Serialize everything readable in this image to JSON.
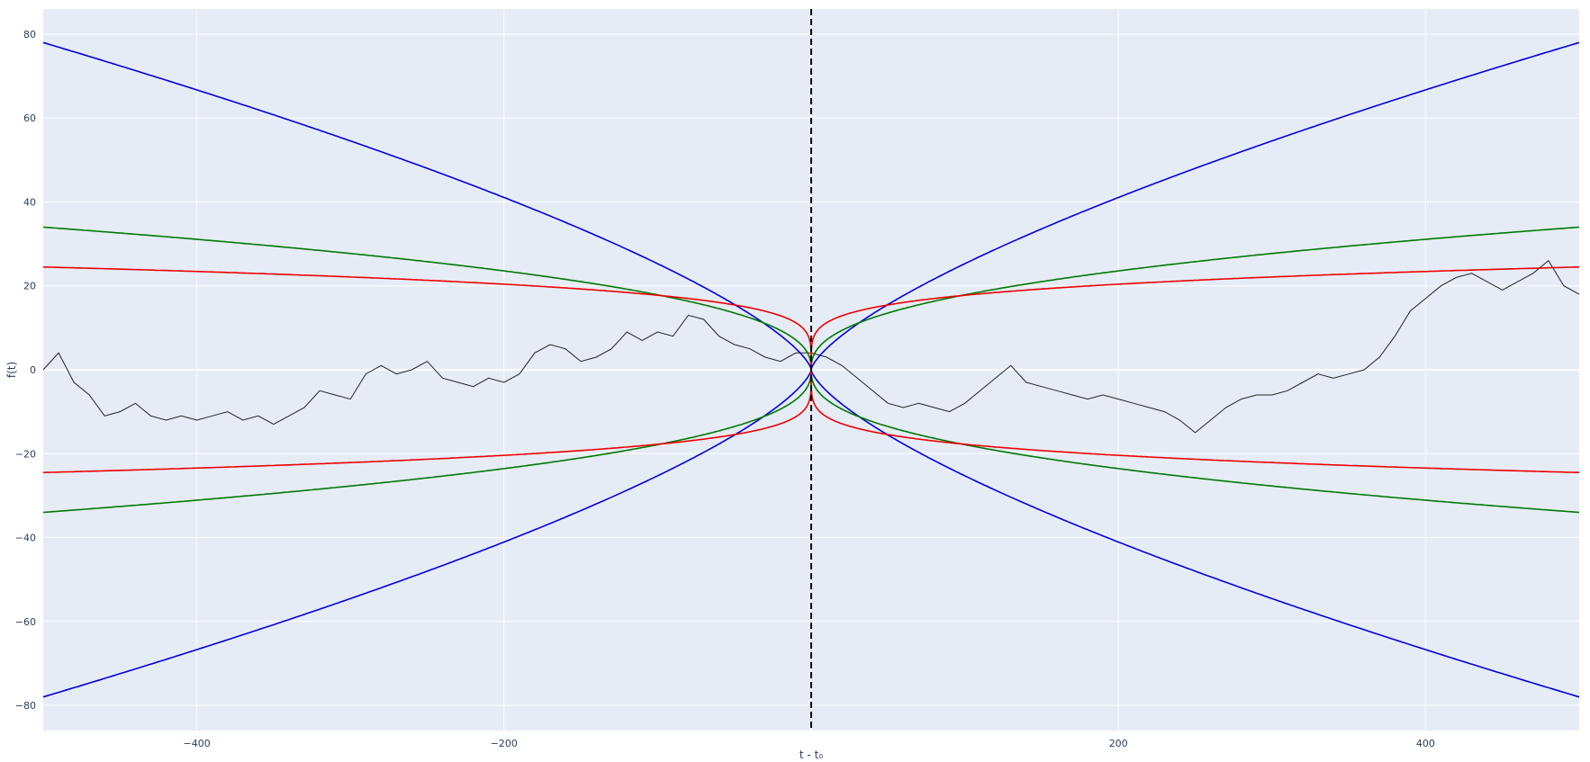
{
  "chart_data": {
    "type": "line",
    "title": "",
    "xlabel": "t - t₀",
    "ylabel": "f(t)",
    "xlim": [
      -500,
      500
    ],
    "ylim": [
      -86,
      86
    ],
    "grid": true,
    "legend": "none",
    "colors": {
      "plot_bg": "#e5ecf6",
      "grid": "#ffffff",
      "text": "#2a3f5f",
      "blue": "#0000dd",
      "green": "#007a00",
      "red": "#ee0000",
      "walk": "#222222",
      "vline": "#000000"
    },
    "x_ticks": [
      {
        "value": -400,
        "label": "−400"
      },
      {
        "value": -200,
        "label": "−200"
      },
      {
        "value": 0,
        "label": ""
      },
      {
        "value": 200,
        "label": "200"
      },
      {
        "value": 400,
        "label": "400"
      }
    ],
    "y_ticks": [
      {
        "value": 80,
        "label": "80"
      },
      {
        "value": 60,
        "label": "60"
      },
      {
        "value": 40,
        "label": "40"
      },
      {
        "value": 20,
        "label": "20"
      },
      {
        "value": 0,
        "label": "0"
      },
      {
        "value": -20,
        "label": "−20"
      },
      {
        "value": -40,
        "label": "−40"
      },
      {
        "value": -60,
        "label": "−60"
      },
      {
        "value": -80,
        "label": "−80"
      }
    ],
    "vertical_line": {
      "x": 0,
      "style": "dashed"
    },
    "envelopes": [
      {
        "color": "blue",
        "exponent": 0.7,
        "value_at_edge": 78
      },
      {
        "color": "green",
        "exponent": 0.4,
        "value_at_edge": 34
      },
      {
        "color": "red",
        "exponent": 0.2,
        "value_at_edge": 24.5
      }
    ],
    "walk": {
      "color": "walk",
      "points": [
        [
          -500,
          0
        ],
        [
          -490,
          4
        ],
        [
          -480,
          -3
        ],
        [
          -470,
          -6
        ],
        [
          -460,
          -11
        ],
        [
          -450,
          -10
        ],
        [
          -440,
          -8
        ],
        [
          -430,
          -11
        ],
        [
          -420,
          -12
        ],
        [
          -410,
          -11
        ],
        [
          -400,
          -12
        ],
        [
          -390,
          -11
        ],
        [
          -380,
          -10
        ],
        [
          -370,
          -12
        ],
        [
          -360,
          -11
        ],
        [
          -350,
          -13
        ],
        [
          -340,
          -11
        ],
        [
          -330,
          -9
        ],
        [
          -320,
          -5
        ],
        [
          -310,
          -6
        ],
        [
          -300,
          -7
        ],
        [
          -290,
          -1
        ],
        [
          -280,
          1
        ],
        [
          -270,
          -1
        ],
        [
          -260,
          0
        ],
        [
          -250,
          2
        ],
        [
          -240,
          -2
        ],
        [
          -230,
          -3
        ],
        [
          -220,
          -4
        ],
        [
          -210,
          -2
        ],
        [
          -200,
          -3
        ],
        [
          -190,
          -1
        ],
        [
          -180,
          4
        ],
        [
          -170,
          6
        ],
        [
          -160,
          5
        ],
        [
          -150,
          2
        ],
        [
          -140,
          3
        ],
        [
          -130,
          5
        ],
        [
          -120,
          9
        ],
        [
          -110,
          7
        ],
        [
          -100,
          9
        ],
        [
          -90,
          8
        ],
        [
          -80,
          13
        ],
        [
          -70,
          12
        ],
        [
          -60,
          8
        ],
        [
          -50,
          6
        ],
        [
          -40,
          5
        ],
        [
          -30,
          3
        ],
        [
          -20,
          2
        ],
        [
          -10,
          4
        ],
        [
          0,
          4
        ],
        [
          10,
          3
        ],
        [
          20,
          1
        ],
        [
          30,
          -2
        ],
        [
          40,
          -5
        ],
        [
          50,
          -8
        ],
        [
          60,
          -9
        ],
        [
          70,
          -8
        ],
        [
          80,
          -9
        ],
        [
          90,
          -10
        ],
        [
          100,
          -8
        ],
        [
          110,
          -5
        ],
        [
          120,
          -2
        ],
        [
          130,
          1
        ],
        [
          140,
          -3
        ],
        [
          150,
          -4
        ],
        [
          160,
          -5
        ],
        [
          170,
          -6
        ],
        [
          180,
          -7
        ],
        [
          190,
          -6
        ],
        [
          200,
          -7
        ],
        [
          210,
          -8
        ],
        [
          220,
          -9
        ],
        [
          230,
          -10
        ],
        [
          240,
          -12
        ],
        [
          250,
          -15
        ],
        [
          260,
          -12
        ],
        [
          270,
          -9
        ],
        [
          280,
          -7
        ],
        [
          290,
          -6
        ],
        [
          300,
          -6
        ],
        [
          310,
          -5
        ],
        [
          320,
          -3
        ],
        [
          330,
          -1
        ],
        [
          340,
          -2
        ],
        [
          350,
          -1
        ],
        [
          360,
          0
        ],
        [
          370,
          3
        ],
        [
          380,
          8
        ],
        [
          390,
          14
        ],
        [
          400,
          17
        ],
        [
          410,
          20
        ],
        [
          420,
          22
        ],
        [
          430,
          23
        ],
        [
          440,
          21
        ],
        [
          450,
          19
        ],
        [
          460,
          21
        ],
        [
          470,
          23
        ],
        [
          480,
          26
        ],
        [
          490,
          20
        ],
        [
          500,
          18
        ]
      ]
    }
  }
}
